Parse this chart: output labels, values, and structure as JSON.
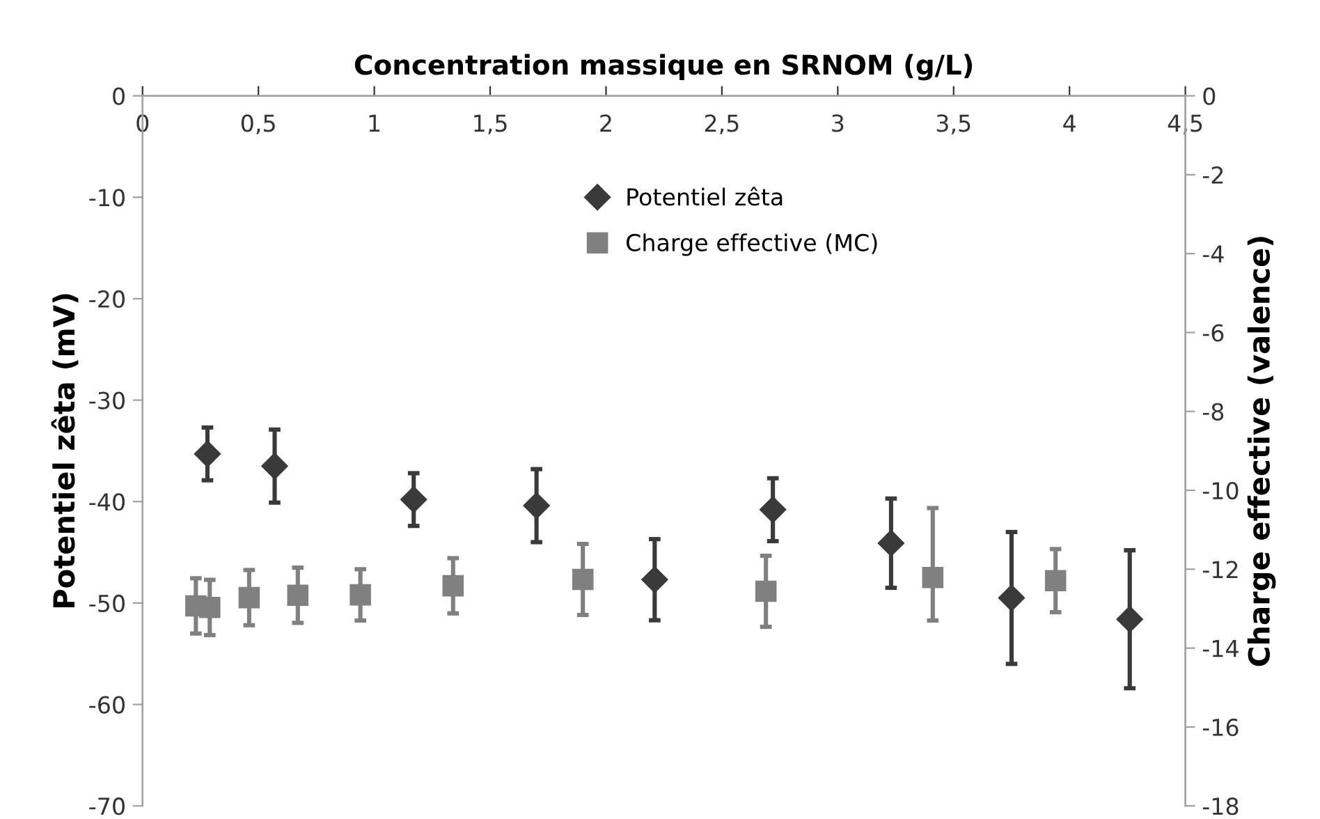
{
  "chart_data": {
    "type": "scatter",
    "xlabel": "Concentration massique en SRNOM (g/L)",
    "ylabel": "Potentiel zêta (mV)",
    "y2label": "Charge effective (valence)",
    "xlim": [
      0,
      4.5
    ],
    "xticks": [
      0,
      {
        "value": 0.5,
        "label": "0,5"
      },
      1,
      {
        "value": 1.5,
        "label": "1,5"
      },
      2,
      {
        "value": 2.5,
        "label": "2,5"
      },
      3,
      {
        "value": 3.5,
        "label": "3,5"
      },
      4,
      {
        "value": 4.5,
        "label": "4,5"
      }
    ],
    "ylim": [
      -70,
      0
    ],
    "yticks": [
      -70,
      -60,
      -50,
      -40,
      -30,
      -20,
      -10,
      0
    ],
    "y2lim": [
      -18,
      0
    ],
    "y2ticks": [
      -18,
      -16,
      -14,
      -12,
      -10,
      -8,
      -6,
      -4,
      -2,
      0
    ],
    "grid": false,
    "legend": "top",
    "series": [
      {
        "name": "Potentiel zêta",
        "color": "#3a3a3a",
        "marker": "diamond",
        "x": [
          0.28,
          0.57,
          1.17,
          1.7,
          2.21,
          2.72,
          3.23,
          3.75,
          4.26
        ],
        "values": [
          -35.3,
          -36.5,
          -39.8,
          -40.4,
          -47.7,
          -40.8,
          -44.1,
          -49.5,
          -51.6
        ],
        "errors": [
          2.6,
          3.6,
          2.6,
          3.6,
          4.0,
          3.1,
          4.4,
          6.5,
          6.8
        ]
      },
      {
        "name": "Charge effective (MC)",
        "color": "#808080",
        "marker": "square",
        "axis": "y2",
        "x": [
          0.23,
          0.29,
          0.46,
          0.67,
          0.94,
          1.34,
          1.9,
          2.69,
          3.41,
          3.94
        ],
        "values": [
          -12.93,
          -12.97,
          -12.72,
          -12.66,
          -12.65,
          -12.42,
          -12.26,
          -12.56,
          -12.21,
          -12.29
        ],
        "errors": [
          0.7,
          0.7,
          0.7,
          0.7,
          0.65,
          0.7,
          0.9,
          0.9,
          [
            -13.3,
            -10.45
          ],
          0.8
        ]
      }
    ]
  }
}
